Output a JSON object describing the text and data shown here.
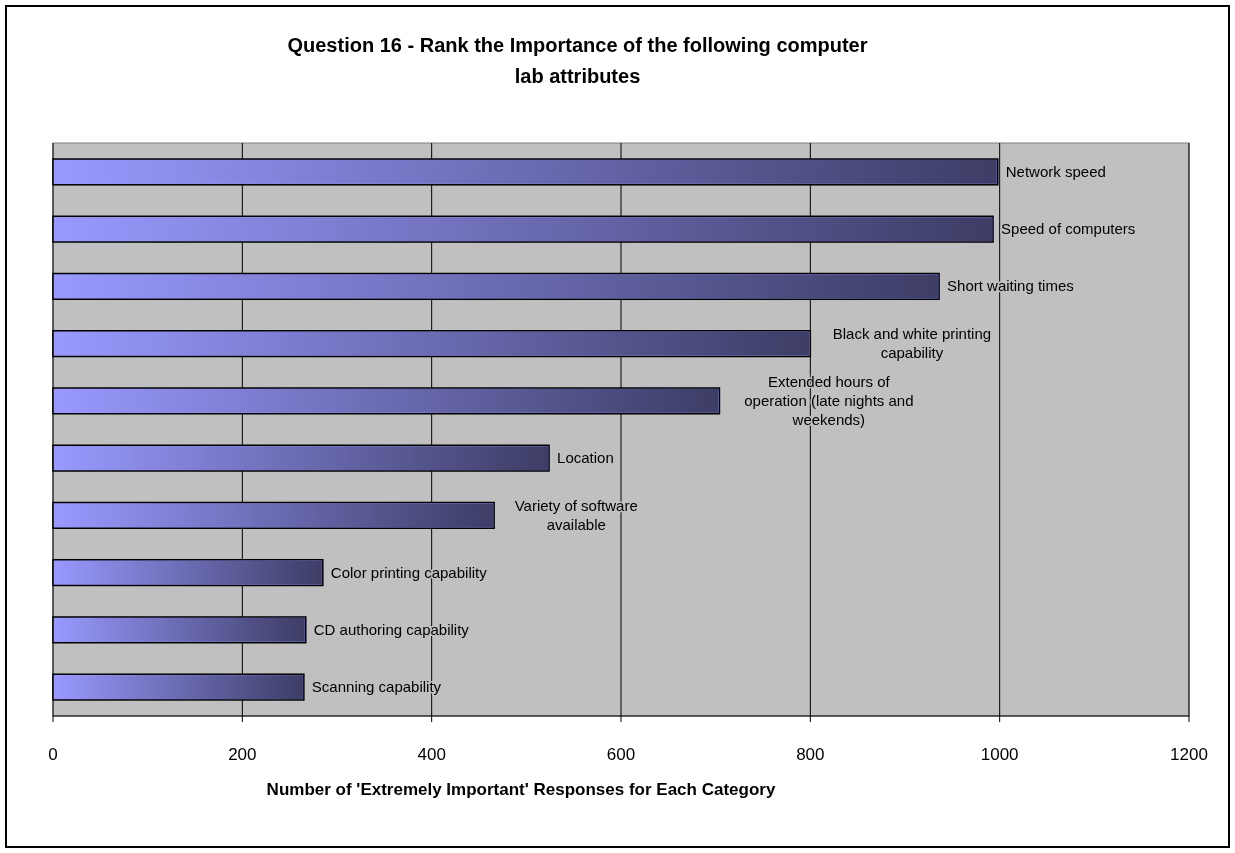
{
  "chart_data": {
    "type": "bar",
    "orientation": "horizontal",
    "title": "Question 16 - Rank the Importance of the following computer lab attributes",
    "xlabel": "Number of 'Extremely Important' Responses for Each Category",
    "categories": [
      "Network speed",
      "Speed of computers",
      "Short waiting times",
      "Black and white printing capability",
      "Extended hours of operation (late nights and weekends)",
      "Location",
      "Variety of software available",
      "Color printing capability",
      "CD authoring capability",
      "Scanning capability"
    ],
    "values": [
      998,
      993,
      936,
      800,
      704,
      524,
      466,
      285,
      267,
      265
    ],
    "color": "#9999ff",
    "xlim": [
      0,
      1200
    ],
    "xticks": [
      0,
      200,
      400,
      600,
      800,
      1000,
      1200
    ],
    "grid": "x"
  }
}
